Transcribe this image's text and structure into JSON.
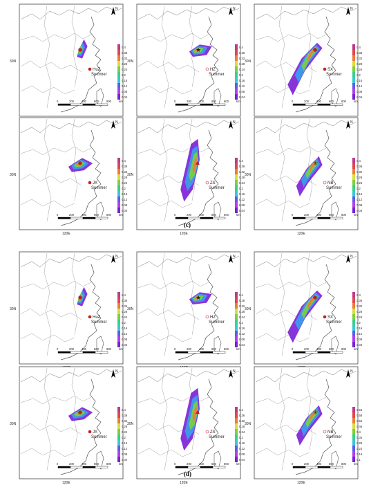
{
  "colors": {
    "scale": [
      "#7a1fd6",
      "#b33ef0",
      "#5a5ee8",
      "#3aa0ec",
      "#38c8d8",
      "#3ccf8a",
      "#7ed03c",
      "#d6e03a",
      "#f0b43c",
      "#f07a3c",
      "#e04848",
      "#c03a8a"
    ]
  },
  "groups": [
    {
      "label": "(c)",
      "panels": [
        {
          "site": "HuZ",
          "season": "Summer",
          "marker": "circle",
          "legend": [
            "0.4",
            "0.36",
            "0.32",
            "0.28",
            "0.24",
            "0.2",
            "0.16",
            "0.12",
            "0.08",
            "0.04"
          ],
          "scalebar": [
            "0",
            "200",
            "400",
            "600",
            "800",
            "km"
          ],
          "lat": "30N",
          "lon": "120E"
        },
        {
          "site": "HZ",
          "season": "Summer",
          "marker": "star",
          "legend": [
            "0.4",
            "0.36",
            "0.32",
            "0.28",
            "0.24",
            "0.2",
            "0.16",
            "0.12",
            "0.08",
            "0.04"
          ],
          "scalebar": [
            "0",
            "200",
            "400",
            "600",
            "800",
            "km"
          ],
          "lat": "30N",
          "lon": "120E"
        },
        {
          "site": "SX",
          "season": "Summer",
          "marker": "circle",
          "legend": [
            "0.4",
            "0.36",
            "0.32",
            "0.28",
            "0.24",
            "0.2",
            "0.16",
            "0.12",
            "0.08",
            "0.04"
          ],
          "scalebar": [
            "0",
            "200",
            "400",
            "600",
            "800",
            "km"
          ],
          "lat": "30N",
          "lon": "120E"
        },
        {
          "site": "JX",
          "season": "Summer",
          "marker": "circle",
          "legend": [
            "0.4",
            "0.36",
            "0.32",
            "0.28",
            "0.24",
            "0.2",
            "0.16",
            "0.12",
            "0.08",
            "0.04"
          ],
          "scalebar": [
            "0",
            "200",
            "400",
            "600",
            "800",
            "km"
          ],
          "lat": "30N",
          "lon": "120E"
        },
        {
          "site": "ZS",
          "season": "Summer",
          "marker": "triangle",
          "legend": [
            "0.4",
            "0.36",
            "0.32",
            "0.28",
            "0.24",
            "0.2",
            "0.16",
            "0.12",
            "0.08",
            "0.04"
          ],
          "scalebar": [
            "0",
            "200",
            "400",
            "600",
            "800",
            "km"
          ],
          "lat": "30N",
          "lon": "120E"
        },
        {
          "site": "NB",
          "season": "Summer",
          "marker": "asterisk",
          "legend": [
            "0.4",
            "0.36",
            "0.32",
            "0.28",
            "0.24",
            "0.2",
            "0.16",
            "0.12",
            "0.08",
            "0.04"
          ],
          "scalebar": [
            "0",
            "200",
            "400",
            "600",
            "800",
            "km"
          ],
          "lat": "30N",
          "lon": "120E"
        }
      ]
    },
    {
      "label": "(d)",
      "panels": [
        {
          "site": "HuZ",
          "season": "Summer",
          "marker": "circle",
          "legend": [
            "0.4",
            "0.36",
            "0.32",
            "0.28",
            "0.24",
            "0.2",
            "0.16",
            "0.12",
            "0.08",
            "0.04"
          ],
          "scalebar": [
            "0",
            "200",
            "400",
            "600",
            "800",
            "km"
          ],
          "lat": "30N",
          "lon": "120E"
        },
        {
          "site": "HZ",
          "season": "Summer",
          "marker": "star",
          "legend": [
            "0.4",
            "0.36",
            "0.32",
            "0.28",
            "0.24",
            "0.2",
            "0.16",
            "0.12",
            "0.08",
            "0.04"
          ],
          "scalebar": [
            "0",
            "200",
            "400",
            "600",
            "800",
            "km"
          ],
          "lat": "30N",
          "lon": "120E"
        },
        {
          "site": "SX",
          "season": "Summer",
          "marker": "circle",
          "legend": [
            "0.4",
            "0.36",
            "0.32",
            "0.28",
            "0.24",
            "0.2",
            "0.16",
            "0.12",
            "0.08",
            "0.04"
          ],
          "scalebar": [
            "0",
            "200",
            "400",
            "600",
            "800",
            "km"
          ],
          "lat": "30N",
          "lon": "120E"
        },
        {
          "site": "JX",
          "season": "Summer",
          "marker": "circle",
          "legend": [
            "0.4",
            "0.36",
            "0.32",
            "0.28",
            "0.24",
            "0.2",
            "0.16",
            "0.12",
            "0.08",
            "0.04"
          ],
          "scalebar": [
            "0",
            "200",
            "400",
            "600",
            "800",
            "km"
          ],
          "lat": "30N",
          "lon": "120E"
        },
        {
          "site": "ZS",
          "season": "Summer",
          "marker": "triangle",
          "legend": [
            "0.4",
            "0.36",
            "0.32",
            "0.28",
            "0.24",
            "0.2",
            "0.16",
            "0.12",
            "0.08",
            "0.04"
          ],
          "scalebar": [
            "0",
            "200",
            "400",
            "600",
            "800",
            "km"
          ],
          "lat": "30N",
          "lon": "120E"
        },
        {
          "site": "NB",
          "season": "Summer",
          "marker": "asterisk",
          "legend": [
            "0.64",
            "0.58",
            "0.52",
            "0.46",
            "0.4",
            "0.34",
            "0.28",
            "0.22",
            "0.16",
            "0.1"
          ],
          "scalebar": [
            "0",
            "200",
            "400",
            "600",
            "800",
            "km"
          ],
          "lat": "30N",
          "lon": "120E"
        }
      ]
    }
  ]
}
